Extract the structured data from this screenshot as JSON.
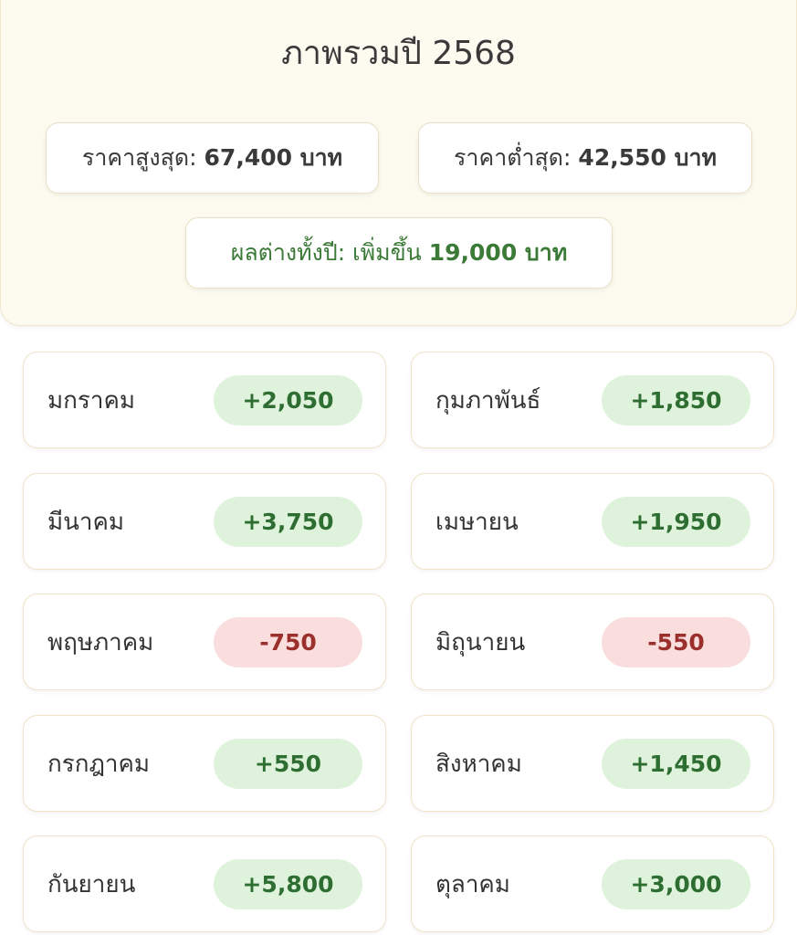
{
  "summary": {
    "title": "ภาพรวมปี 2568",
    "max_label": "ราคาสูงสุด:",
    "max_value": "67,400 บาท",
    "min_label": "ราคาต่ำสุด:",
    "min_value": "42,550 บาท",
    "diff_label": "ผลต่างทั้งปี: เพิ่มขึ้น",
    "diff_value": "19,000 บาท"
  },
  "colors": {
    "positive_bg": "#dff3dc",
    "positive_text": "#2f6e32",
    "negative_bg": "#f9dedd",
    "negative_text": "#9a2f2b",
    "accent_green": "#3c7a38"
  },
  "months": [
    {
      "name": "มกราคม",
      "change": "+2,050",
      "trend": "up"
    },
    {
      "name": "กุมภาพันธ์",
      "change": "+1,850",
      "trend": "up"
    },
    {
      "name": "มีนาคม",
      "change": "+3,750",
      "trend": "up"
    },
    {
      "name": "เมษายน",
      "change": "+1,950",
      "trend": "up"
    },
    {
      "name": "พฤษภาคม",
      "change": "-750",
      "trend": "down"
    },
    {
      "name": "มิถุนายน",
      "change": "-550",
      "trend": "down"
    },
    {
      "name": "กรกฎาคม",
      "change": "+550",
      "trend": "up"
    },
    {
      "name": "สิงหาคม",
      "change": "+1,450",
      "trend": "up"
    },
    {
      "name": "กันยายน",
      "change": "+5,800",
      "trend": "up"
    },
    {
      "name": "ตุลาคม",
      "change": "+3,000",
      "trend": "up"
    }
  ]
}
